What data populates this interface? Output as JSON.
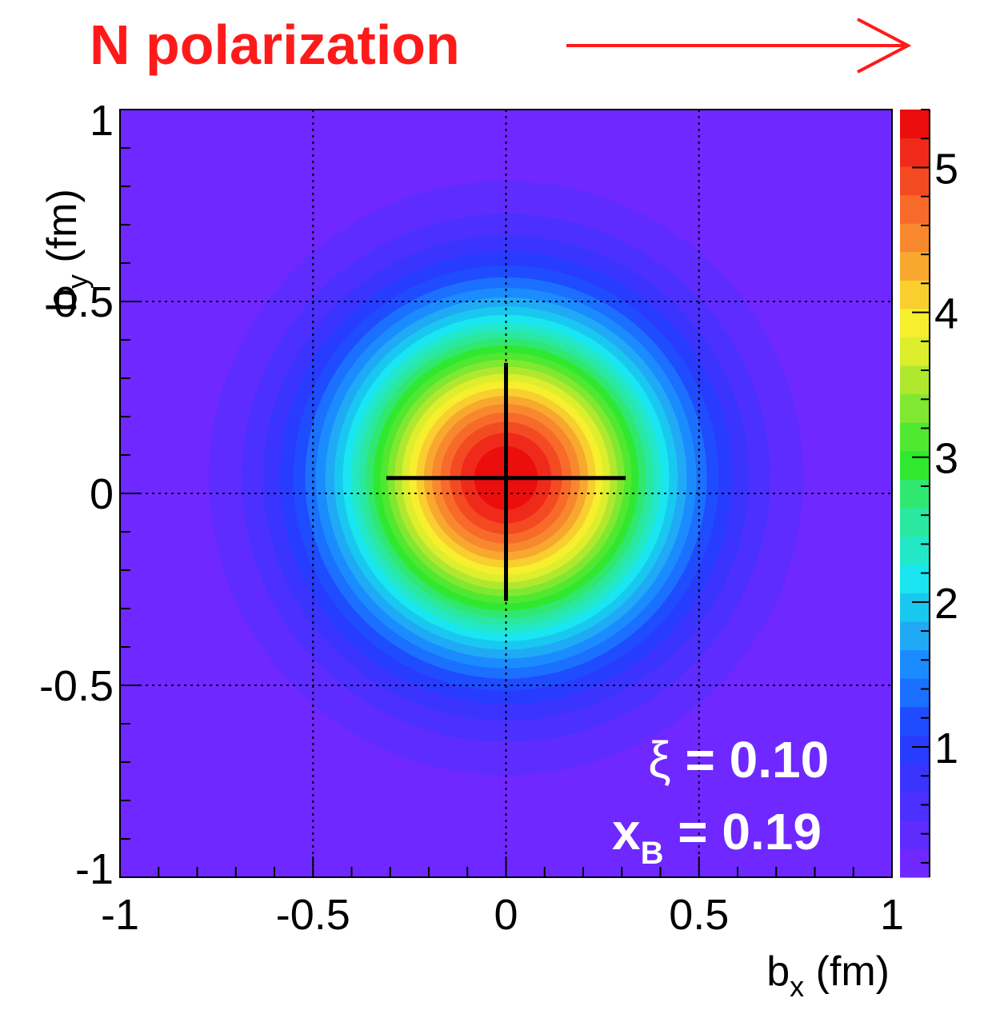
{
  "chart_data": {
    "type": "heatmap",
    "title": "N polarization",
    "title_arrow": "right",
    "xlabel": {
      "main": "b",
      "sub": "x",
      "unit": " (fm)"
    },
    "ylabel": {
      "main": "b",
      "sub": "y",
      "unit": " (fm)"
    },
    "xlim": [
      -1,
      1
    ],
    "ylim": [
      -1,
      1
    ],
    "x_ticks": [
      -1,
      -0.5,
      0,
      0.5,
      1
    ],
    "x_tick_labels": [
      "-1",
      "-0.5",
      "0",
      "0.5",
      "1"
    ],
    "y_ticks": [
      -1,
      -0.5,
      0,
      0.5,
      1
    ],
    "y_tick_labels": [
      "-1",
      "-0.5",
      "0",
      "0.5",
      "1"
    ],
    "grid": true,
    "colorbar": {
      "min": 0.1,
      "max": 5.4,
      "ticks": [
        1,
        2,
        3,
        4,
        5
      ],
      "tick_labels": [
        "1",
        "2",
        "3",
        "4",
        "5"
      ]
    },
    "distribution": {
      "center": [
        0.0,
        0.04
      ],
      "peak_value": 5.4,
      "min_value": 0.1,
      "profile": "gaussian",
      "sigma_fm": 0.3
    },
    "centroid_cross": {
      "center": [
        0.0,
        0.04
      ],
      "x_extent": [
        -0.31,
        0.31
      ],
      "y_extent": [
        -0.28,
        0.34
      ]
    },
    "annotations": {
      "xi": {
        "symbol": "ξ",
        "text": " = 0.10"
      },
      "xb": {
        "main": "x",
        "sub": "B",
        "text": " = 0.19"
      }
    },
    "palette": [
      "#6f28ff",
      "#5f2cff",
      "#4b30ff",
      "#3b34ff",
      "#283cff",
      "#1f4cff",
      "#1b70ff",
      "#1b8cff",
      "#20aaf5",
      "#19c8f0",
      "#19e6f0",
      "#22e8c8",
      "#2ae8a0",
      "#30e870",
      "#30e830",
      "#50e830",
      "#80e830",
      "#b0e830",
      "#dcee2c",
      "#f7ee2e",
      "#f8cf2e",
      "#f8a82e",
      "#f8882e",
      "#f86a2a",
      "#f44a22",
      "#f02a1a",
      "#ec0d0d"
    ]
  }
}
